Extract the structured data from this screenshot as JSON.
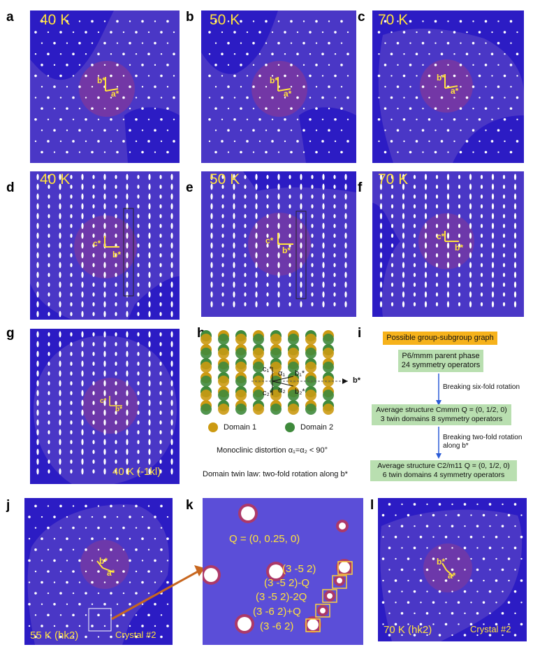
{
  "labels": {
    "a": "a",
    "b": "b",
    "c": "c",
    "d": "d",
    "e": "e",
    "f": "f",
    "g": "g",
    "h": "h",
    "i": "i",
    "j": "j",
    "k": "k",
    "l": "l"
  },
  "temps": {
    "a": "40 K",
    "b": "50 K",
    "c": "70 K",
    "d": "40 K",
    "e": "50 K",
    "f": "70 K"
  },
  "axes": {
    "a_star": "a*",
    "b_star": "b*",
    "c_star": "c*"
  },
  "g": {
    "caption": "40 K (-1kl)"
  },
  "h": {
    "b_star": "b*",
    "c1": "c₁*",
    "c2": "c₂*",
    "b1": "b₁*",
    "b2": "b₂*",
    "a1": "α₁",
    "a2": "α₂",
    "domain1": "Domain 1",
    "domain2": "Domain 2",
    "distortion": "Monoclinic distortion  α₁=α₂ < 90°",
    "twin_law": "Domain twin law: two-fold rotation along b*",
    "colors": {
      "domain1": "#cc9a12",
      "domain2": "#3f8a3c"
    }
  },
  "i": {
    "header": "Possible group-subgroup graph",
    "box1_line1": "P6/mmm parent phase",
    "box1_line2": "24 symmetry operators",
    "step1": "Breaking six-fold rotation",
    "box2_line1": "Average structure Cmmm Q = (0, 1/2, 0)",
    "box2_line2": "3 twin domains 8 symmetry operators",
    "step2_line1": "Breaking two-fold rotation",
    "step2_line2": "along b*",
    "box3_line1": "Average structure C2/m11 Q = (0, 1/2, 0)",
    "box3_line2": "6 twin domains 4 symmetry operators"
  },
  "j": {
    "caption": "55 K (hk2)",
    "crystal": "Crystal #2"
  },
  "k": {
    "q": "Q = (0, 0.25, 0)",
    "p1": "(3 -5 2)",
    "p2": "(3 -5 2)-Q",
    "p3": "(3 -5 2)-2Q",
    "p4": "(3 -6 2)+Q",
    "p5": "(3 -6 2)"
  },
  "l": {
    "caption": "70 K (hk2)",
    "crystal": "Crystal #2"
  },
  "colors": {
    "bg_blue": "#4a37c6",
    "mask": "#2c1cc4",
    "spot": "#ffffff",
    "label": "#ffe23c",
    "arrow": "#e67e22"
  }
}
